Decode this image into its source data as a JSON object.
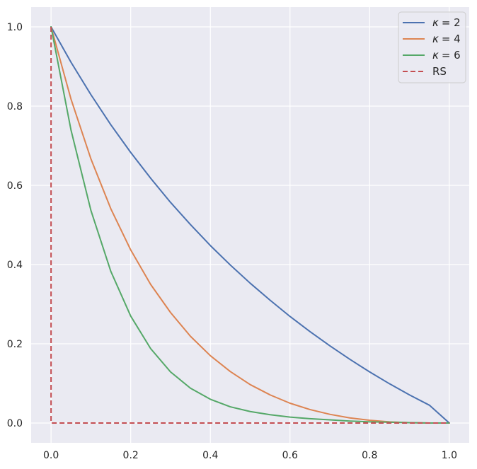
{
  "chart_data": {
    "type": "line",
    "title": "",
    "xlabel": "",
    "ylabel": "",
    "xlim": [
      -0.05,
      1.05
    ],
    "ylim": [
      -0.05,
      1.05
    ],
    "xticks": [
      0.0,
      0.2,
      0.4,
      0.6,
      0.8,
      1.0
    ],
    "yticks": [
      0.0,
      0.2,
      0.4,
      0.6,
      0.8,
      1.0
    ],
    "xtick_labels": [
      "0.0",
      "0.2",
      "0.4",
      "0.6",
      "0.8",
      "1.0"
    ],
    "ytick_labels": [
      "0.0",
      "0.2",
      "0.4",
      "0.6",
      "0.8",
      "1.0"
    ],
    "grid": true,
    "legend_position": "top-right",
    "background": "#eaeaf2",
    "grid_color": "#ffffff",
    "series": [
      {
        "name": "κ = 2",
        "legend_symbol": "κ",
        "legend_value": "= 2",
        "color": "#4c72b0",
        "dash": "solid",
        "x": [
          0.0,
          0.05,
          0.1,
          0.15,
          0.2,
          0.25,
          0.3,
          0.35,
          0.4,
          0.45,
          0.5,
          0.55,
          0.6,
          0.65,
          0.7,
          0.75,
          0.8,
          0.85,
          0.9,
          0.95,
          1.0
        ],
        "y": [
          1.0,
          0.911,
          0.829,
          0.753,
          0.683,
          0.618,
          0.557,
          0.501,
          0.448,
          0.399,
          0.353,
          0.31,
          0.269,
          0.231,
          0.195,
          0.161,
          0.129,
          0.099,
          0.071,
          0.045,
          0.0
        ]
      },
      {
        "name": "κ = 4",
        "legend_symbol": "κ",
        "legend_value": "= 4",
        "color": "#dd8452",
        "dash": "solid",
        "x": [
          0.0,
          0.05,
          0.1,
          0.15,
          0.2,
          0.25,
          0.3,
          0.35,
          0.4,
          0.45,
          0.5,
          0.55,
          0.6,
          0.65,
          0.7,
          0.75,
          0.8,
          0.85,
          0.9,
          0.95,
          1.0
        ],
        "y": [
          1.0,
          0.818,
          0.667,
          0.541,
          0.437,
          0.35,
          0.279,
          0.219,
          0.17,
          0.13,
          0.097,
          0.071,
          0.05,
          0.034,
          0.022,
          0.013,
          0.007,
          0.003,
          0.001,
          0.0,
          0.0
        ]
      },
      {
        "name": "κ = 6",
        "legend_symbol": "κ",
        "legend_value": "= 6",
        "color": "#55a868",
        "dash": "solid",
        "x": [
          0.0,
          0.05,
          0.1,
          0.15,
          0.2,
          0.25,
          0.3,
          0.35,
          0.4,
          0.45,
          0.5,
          0.55,
          0.6,
          0.65,
          0.7,
          0.75,
          0.8,
          0.85,
          0.9,
          0.95,
          1.0
        ],
        "y": [
          1.0,
          0.74,
          0.537,
          0.383,
          0.27,
          0.188,
          0.129,
          0.088,
          0.06,
          0.041,
          0.029,
          0.021,
          0.015,
          0.011,
          0.008,
          0.005,
          0.003,
          0.002,
          0.001,
          0.0,
          0.0
        ]
      },
      {
        "name": "RS",
        "legend_symbol": "",
        "legend_value": "RS",
        "color": "#c44e52",
        "dash": "dashed",
        "x": [
          0.0,
          0.0,
          1.0
        ],
        "y": [
          1.0,
          0.0,
          0.0
        ]
      }
    ]
  }
}
